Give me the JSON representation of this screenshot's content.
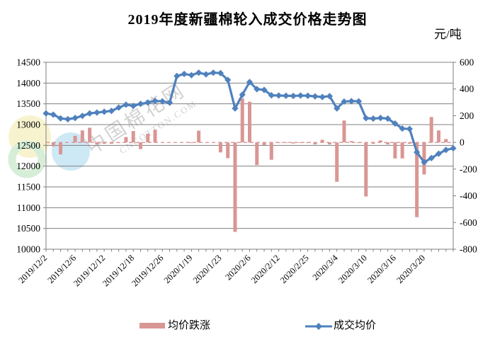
{
  "chart_data": {
    "type": "combo-bar-line",
    "title": "2019年度新疆棉轮入成交价格走势图",
    "unit": "元/吨",
    "n_points": 57,
    "x_tick_labels": [
      "2019/12/2",
      "2019/12/6",
      "2019/12/12",
      "2019/12/18",
      "2019/12/26",
      "2020/1/19",
      "2020/1/23",
      "2020/2/6",
      "2020/2/12",
      "2020/2/25",
      "2020/3/4",
      "2020/3/10",
      "2020/3/16",
      "2020/3/20"
    ],
    "x_tick_indices": [
      0,
      4,
      8,
      12,
      16,
      20,
      24,
      28,
      32,
      36,
      40,
      44,
      48,
      52
    ],
    "left_axis": {
      "min": 10000,
      "max": 14500,
      "step": 500,
      "tick_labels": [
        "14500",
        "14000",
        "13500",
        "13000",
        "12500",
        "12000",
        "11500",
        "11000",
        "10500",
        "10000"
      ]
    },
    "right_axis": {
      "min": -800,
      "max": 600,
      "step": 200,
      "tick_labels": [
        "600",
        "400",
        "200",
        "0",
        "-200",
        "-400",
        "-600",
        "-800"
      ]
    },
    "series": [
      {
        "name": "均价跌涨",
        "type": "bar",
        "axis": "right",
        "color": "#D99694",
        "values": [
          null,
          -30,
          -90,
          null,
          50,
          90,
          110,
          -15,
          -10,
          -10,
          -5,
          40,
          85,
          -50,
          65,
          95,
          null,
          null,
          null,
          null,
          -5,
          88,
          null,
          null,
          -75,
          -118,
          -670,
          330,
          305,
          -170,
          -20,
          -130,
          -5,
          -5,
          -8,
          -5,
          -5,
          -15,
          20,
          -15,
          -295,
          164,
          10,
          -5,
          -405,
          -10,
          15,
          -15,
          -120,
          -120,
          -10,
          -560,
          -240,
          190,
          90,
          25,
          null
        ]
      },
      {
        "name": "成交均价",
        "type": "line",
        "axis": "left",
        "color": "#4F81BD",
        "values": [
          13270,
          13240,
          13150,
          13130,
          13160,
          13210,
          13270,
          13290,
          13310,
          13330,
          13410,
          13480,
          13450,
          13500,
          13530,
          13570,
          13560,
          13530,
          14170,
          14220,
          14190,
          14250,
          14210,
          14250,
          14240,
          14075,
          13390,
          13720,
          14025,
          13855,
          13835,
          13705,
          13700,
          13695,
          13690,
          13700,
          13695,
          13680,
          13665,
          13685,
          13390,
          13555,
          13565,
          13560,
          13155,
          13145,
          13160,
          13145,
          13025,
          12905,
          12895,
          12335,
          12095,
          12195,
          12300,
          12390,
          12430
        ]
      }
    ],
    "zero_line": {
      "axis": "right",
      "value": 0,
      "style": "dashed",
      "color": "#D99694"
    },
    "grid": {
      "horizontal": true,
      "color": "#7F7F7F"
    }
  },
  "watermark": {
    "text_cn": "中国棉花网",
    "text_en": "CNCOTTON.COM",
    "logo_colors": [
      "#F2E9A0",
      "#9FD4EF",
      "#AEDFB2"
    ]
  },
  "colors": {
    "line": "#4F81BD",
    "bar": "#D99694",
    "grid": "#7F7F7F",
    "text": "#000000"
  }
}
